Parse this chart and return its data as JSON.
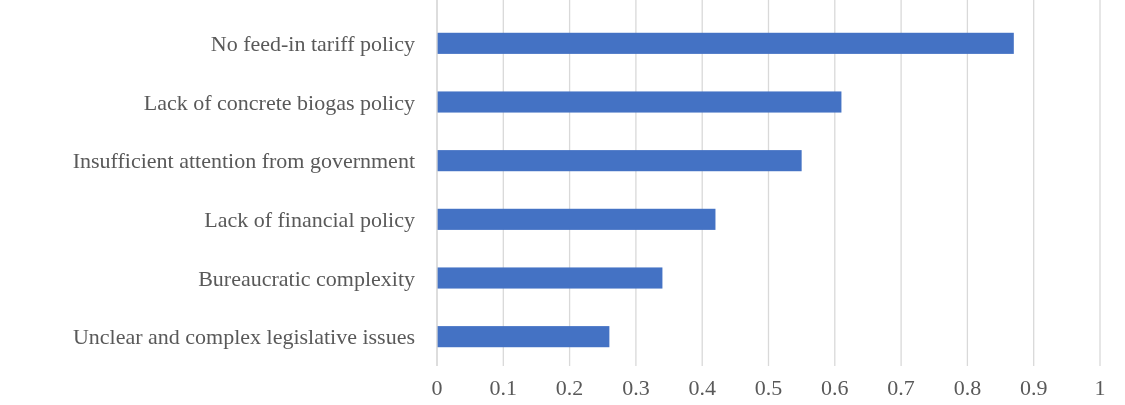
{
  "chart_data": {
    "type": "bar",
    "orientation": "horizontal",
    "categories": [
      "No feed-in tariff policy",
      "Lack of concrete biogas policy",
      "Insufficient attention from government",
      "Lack of financial policy",
      "Bureaucratic complexity",
      "Unclear and complex legislative issues"
    ],
    "values": [
      0.87,
      0.61,
      0.55,
      0.42,
      0.34,
      0.26
    ],
    "color": "#4472c4",
    "xlim": [
      0,
      1
    ],
    "xticks": [
      0,
      0.1,
      0.2,
      0.3,
      0.4,
      0.5,
      0.6,
      0.7,
      0.8,
      0.9,
      1
    ],
    "grid": "x"
  }
}
